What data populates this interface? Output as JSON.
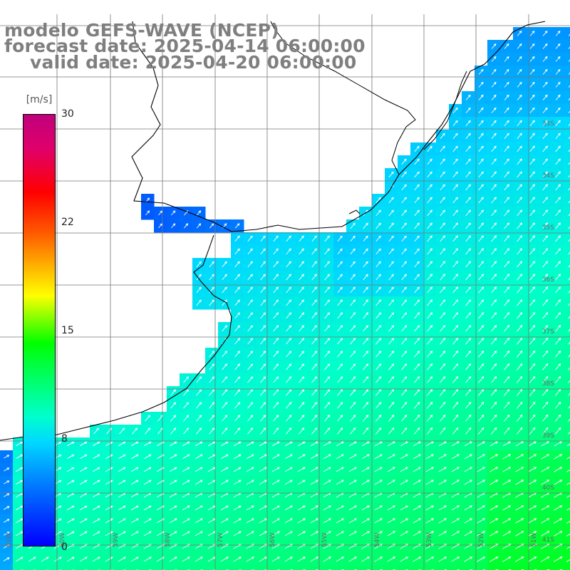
{
  "map": {
    "title_model": "modelo GEFS-WAVE (NCEP)",
    "title_forecast": "forecast date: 2025-04-14 06:00:00",
    "title_valid": "valid date: 2025-04-20 06:00:00",
    "units": "[m/s]",
    "colorbar_labels": [
      "30",
      "22",
      "15",
      "8",
      "0"
    ],
    "colorbar_range": [
      0,
      30
    ],
    "colorbar_colors": [
      "#0000ff",
      "#0070ff",
      "#00d8ff",
      "#00ffcc",
      "#00ff00",
      "#a0ff00",
      "#ffff00",
      "#ff6000",
      "#ff0000",
      "#c0007c"
    ],
    "variable": "wind speed and direction",
    "arrow_color": "#ffffff",
    "land_color": "#ffffff",
    "coastline_color": "#000000",
    "gridline_color": "#777777",
    "lat_labels": [
      "33S",
      "34S",
      "35S",
      "36S",
      "37S",
      "38S",
      "39S",
      "40S",
      "41S"
    ],
    "lon_labels": [
      "61W",
      "60W",
      "59W",
      "58W",
      "57W",
      "56W",
      "55W",
      "54W",
      "53W",
      "52W",
      "51W"
    ]
  }
}
